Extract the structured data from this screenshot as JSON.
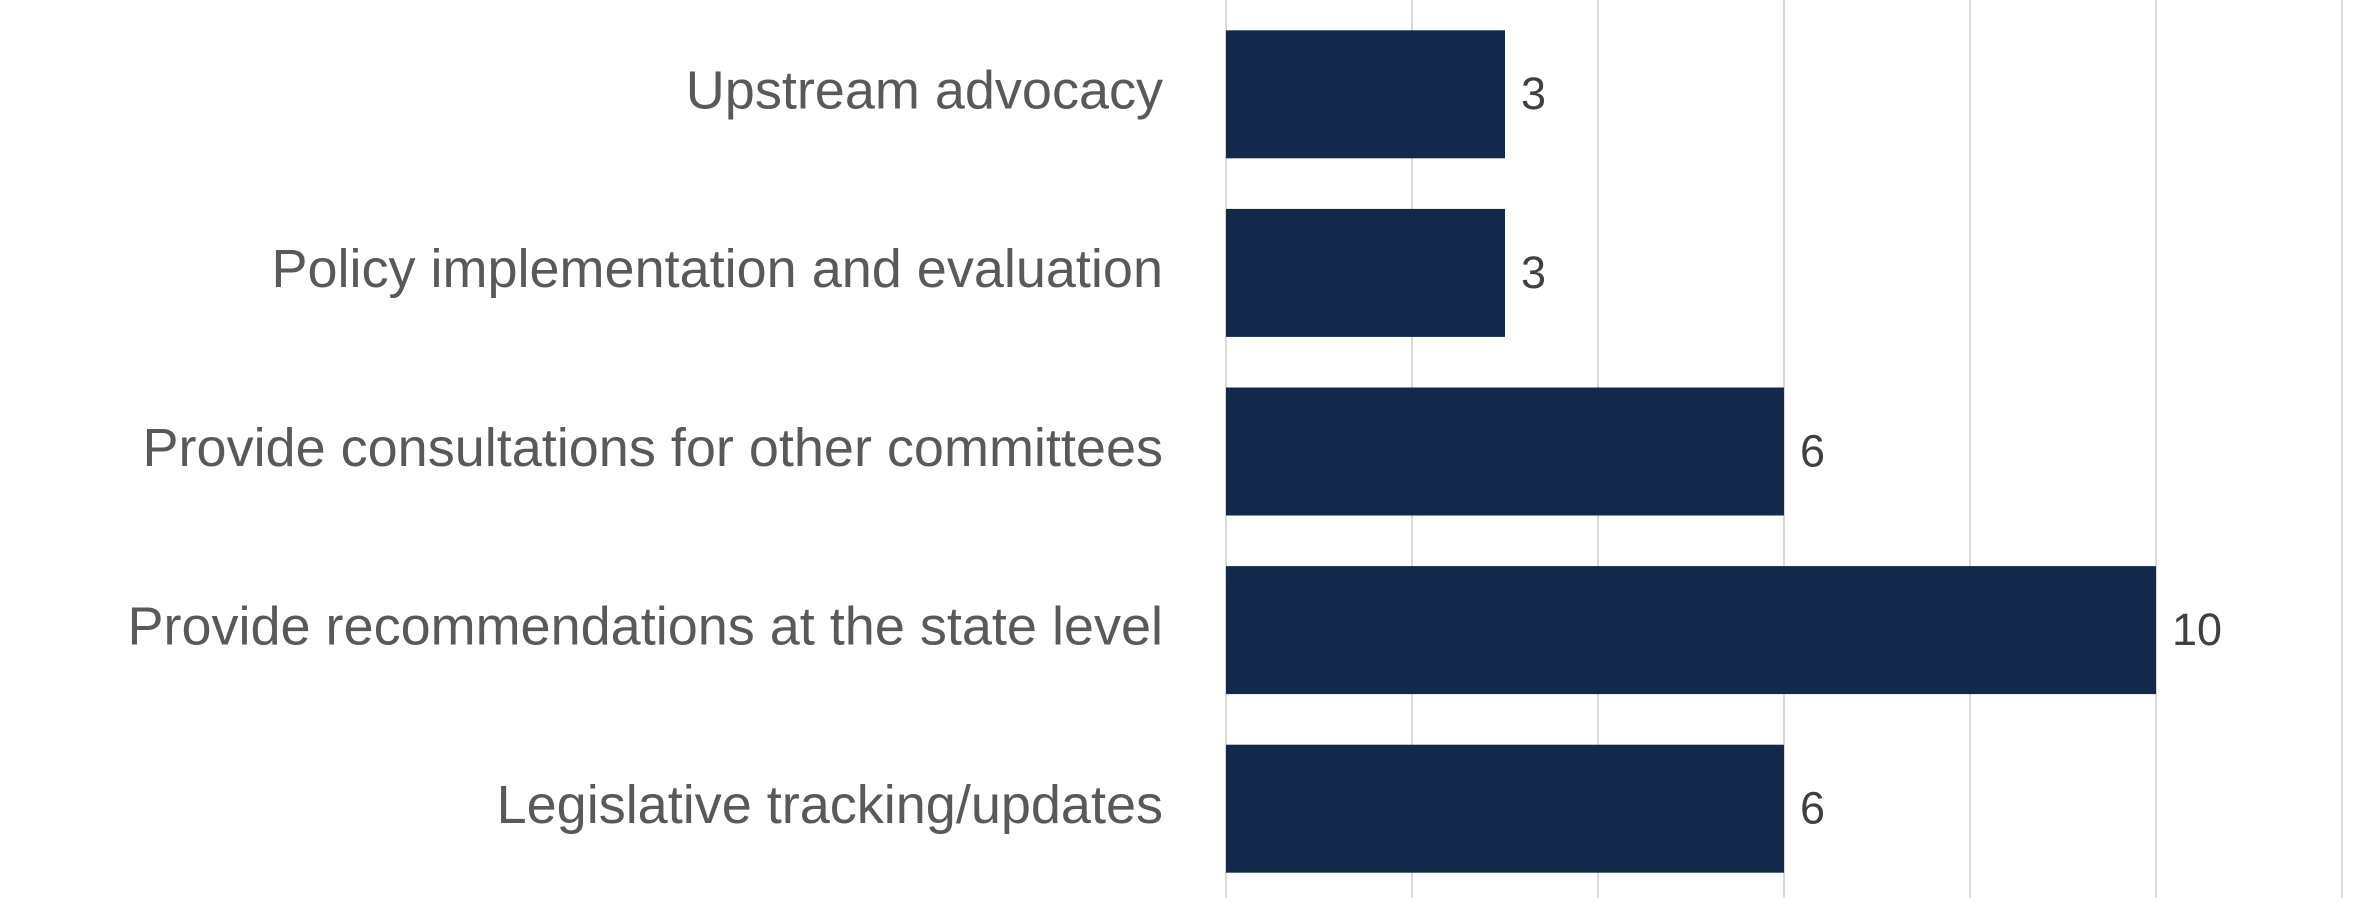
{
  "chart_data": {
    "type": "barh",
    "categories": [
      "Upstream advocacy",
      "Policy implementation and evaluation",
      "Provide consultations for other committees",
      "Provide recommendations at the state level",
      "Legislative tracking/updates"
    ],
    "values": [
      3,
      3,
      6,
      10,
      6
    ],
    "color": "#14284b",
    "xlim": [
      0,
      12
    ],
    "xticks": [
      0,
      2,
      4,
      6,
      8,
      10,
      12
    ],
    "grid": true
  }
}
